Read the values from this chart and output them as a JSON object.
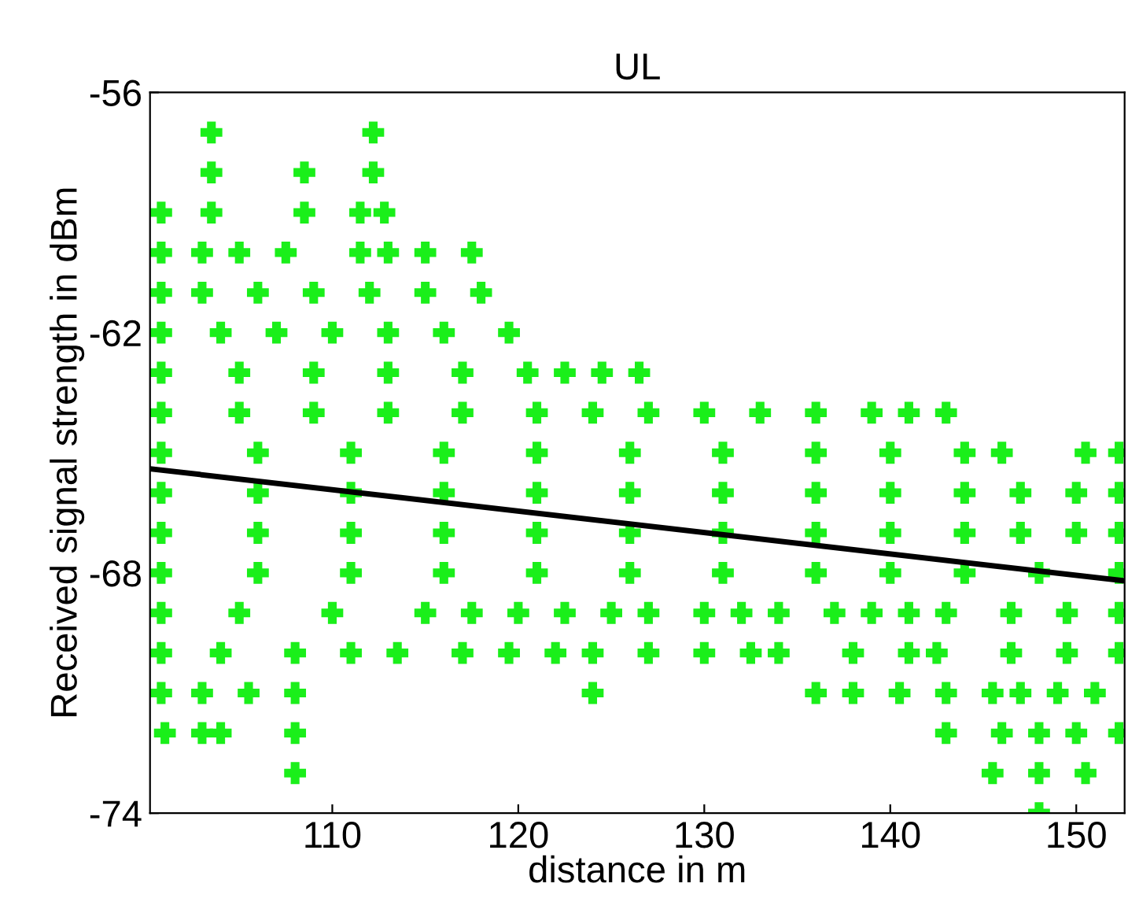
{
  "chart_data": {
    "type": "scatter",
    "title": "UL",
    "xlabel": "distance in m",
    "ylabel": "Received signal strength in dBm",
    "xlim": [
      100.2,
      152.6
    ],
    "ylim": [
      -74,
      -56
    ],
    "xticks": [
      110,
      120,
      130,
      140,
      150
    ],
    "yticks": [
      -56,
      -62,
      -68,
      -74
    ],
    "grid": false,
    "legend": false,
    "marker": "cross",
    "series": [
      {
        "color": "#1aef1a",
        "x": [
          103.5,
          112.2
        ],
        "values": [
          -57,
          -57
        ]
      },
      {
        "color": "#1aef1a",
        "x": [
          103.5,
          108.5,
          112.2
        ],
        "values": [
          -58,
          -58,
          -58
        ]
      },
      {
        "color": "#1aef1a",
        "x": [
          100.8,
          103.5,
          108.5,
          111.5,
          112.8
        ],
        "values": [
          -59,
          -59,
          -59,
          -59,
          -59
        ]
      },
      {
        "color": "#1aef1a",
        "x": [
          100.8,
          103,
          105,
          107.5,
          111.5,
          113,
          115,
          117.5
        ],
        "values": [
          -60,
          -60,
          -60,
          -60,
          -60,
          -60,
          -60,
          -60
        ]
      },
      {
        "color": "#1aef1a",
        "x": [
          100.8,
          103,
          106,
          109,
          112,
          115,
          118
        ],
        "values": [
          -61,
          -61,
          -61,
          -61,
          -61,
          -61,
          -61
        ]
      },
      {
        "color": "#1aef1a",
        "x": [
          100.8,
          104,
          107,
          110,
          113,
          116,
          119.5
        ],
        "values": [
          -62,
          -62,
          -62,
          -62,
          -62,
          -62,
          -62
        ]
      },
      {
        "color": "#1aef1a",
        "x": [
          100.8,
          105,
          109,
          113,
          117,
          120.5,
          122.5,
          124.5,
          126.5
        ],
        "values": [
          -63,
          -63,
          -63,
          -63,
          -63,
          -63,
          -63,
          -63,
          -63
        ]
      },
      {
        "color": "#1aef1a",
        "x": [
          100.8,
          105,
          109,
          113,
          117,
          121,
          124,
          127,
          130,
          133,
          136,
          139,
          141,
          143
        ],
        "values": [
          -64,
          -64,
          -64,
          -64,
          -64,
          -64,
          -64,
          -64,
          -64,
          -64,
          -64,
          -64,
          -64,
          -64
        ]
      },
      {
        "color": "#1aef1a",
        "x": [
          100.8,
          106,
          111,
          116,
          121,
          126,
          131,
          136,
          140,
          144,
          146,
          150.5,
          152.3
        ],
        "values": [
          -65,
          -65,
          -65,
          -65,
          -65,
          -65,
          -65,
          -65,
          -65,
          -65,
          -65,
          -65,
          -65
        ]
      },
      {
        "color": "#1aef1a",
        "x": [
          100.8,
          106,
          111,
          116,
          121,
          126,
          131,
          136,
          140,
          144,
          147,
          150,
          152.3
        ],
        "values": [
          -66,
          -66,
          -66,
          -66,
          -66,
          -66,
          -66,
          -66,
          -66,
          -66,
          -66,
          -66,
          -66
        ]
      },
      {
        "color": "#1aef1a",
        "x": [
          100.8,
          106,
          111,
          116,
          121,
          126,
          131,
          136,
          140,
          144,
          147,
          150,
          152.3
        ],
        "values": [
          -67,
          -67,
          -67,
          -67,
          -67,
          -67,
          -67,
          -67,
          -67,
          -67,
          -67,
          -67,
          -67
        ]
      },
      {
        "color": "#1aef1a",
        "x": [
          100.8,
          106,
          111,
          116,
          121,
          126,
          131,
          136,
          140,
          144,
          148,
          152.3
        ],
        "values": [
          -68,
          -68,
          -68,
          -68,
          -68,
          -68,
          -68,
          -68,
          -68,
          -68,
          -68,
          -68
        ]
      },
      {
        "color": "#1aef1a",
        "x": [
          100.8,
          105,
          110,
          115,
          117.5,
          120,
          122.5,
          125,
          127,
          130,
          132,
          134,
          137,
          139,
          141,
          143,
          146.5,
          149.5,
          152.3
        ],
        "values": [
          -69,
          -69,
          -69,
          -69,
          -69,
          -69,
          -69,
          -69,
          -69,
          -69,
          -69,
          -69,
          -69,
          -69,
          -69,
          -69,
          -69,
          -69,
          -69
        ]
      },
      {
        "color": "#1aef1a",
        "x": [
          100.8,
          104,
          108,
          111,
          113.5,
          117,
          119.5,
          122,
          124,
          127,
          130,
          132.5,
          134,
          138,
          141,
          142.5,
          146.5,
          149.5,
          152.3
        ],
        "values": [
          -70,
          -70,
          -70,
          -70,
          -70,
          -70,
          -70,
          -70,
          -70,
          -70,
          -70,
          -70,
          -70,
          -70,
          -70,
          -70,
          -70,
          -70,
          -70
        ]
      },
      {
        "color": "#1aef1a",
        "x": [
          100.8,
          103,
          105.5,
          108,
          124,
          136,
          138,
          140.5,
          143,
          145.5,
          147,
          149,
          151
        ],
        "values": [
          -71,
          -71,
          -71,
          -71,
          -71,
          -71,
          -71,
          -71,
          -71,
          -71,
          -71,
          -71,
          -71
        ]
      },
      {
        "color": "#1aef1a",
        "x": [
          101,
          103,
          104,
          108,
          143,
          146,
          148,
          150,
          152.3
        ],
        "values": [
          -72,
          -72,
          -72,
          -72,
          -72,
          -72,
          -72,
          -72,
          -72
        ]
      },
      {
        "color": "#1aef1a",
        "x": [
          108,
          145.5,
          148,
          150.5
        ],
        "values": [
          -73,
          -73,
          -73,
          -73
        ]
      },
      {
        "color": "#1aef1a",
        "x": [
          148
        ],
        "values": [
          -74
        ]
      },
      {
        "type": "line",
        "marker": "none",
        "color": "#000000",
        "x": [
          100.2,
          152.6
        ],
        "values": [
          -65.4,
          -68.2
        ]
      }
    ]
  }
}
